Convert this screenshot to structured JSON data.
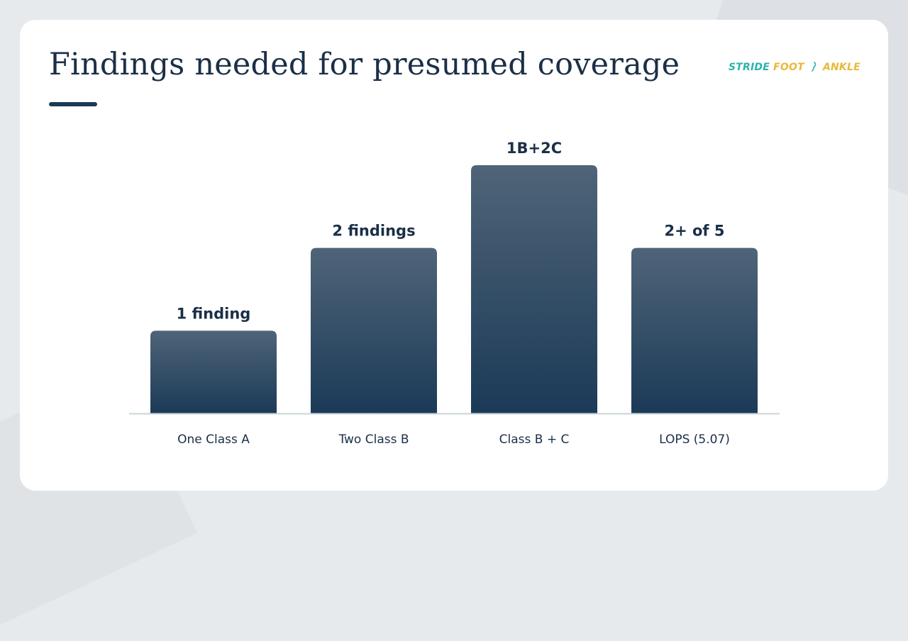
{
  "title": "Findings needed for presumed coverage",
  "logo": {
    "part1": "STRIDE",
    "part2": "FOOT",
    "part3": "ANKLE"
  },
  "colors": {
    "bar_top": "#4f6478",
    "bar_bottom": "#1b3a57",
    "baseline": "#c9d3da",
    "text": "#1b2f47"
  },
  "chart_data": {
    "type": "bar",
    "categories": [
      "One Class A",
      "Two Class B",
      "Class B + C",
      "LOPS (5.07)"
    ],
    "values": [
      1,
      2,
      3,
      2
    ],
    "data_labels": [
      "1 finding",
      "2 findings",
      "1B+2C",
      "2+ of 5"
    ],
    "ylim": [
      0,
      3
    ],
    "grid": false,
    "legend": "none"
  }
}
